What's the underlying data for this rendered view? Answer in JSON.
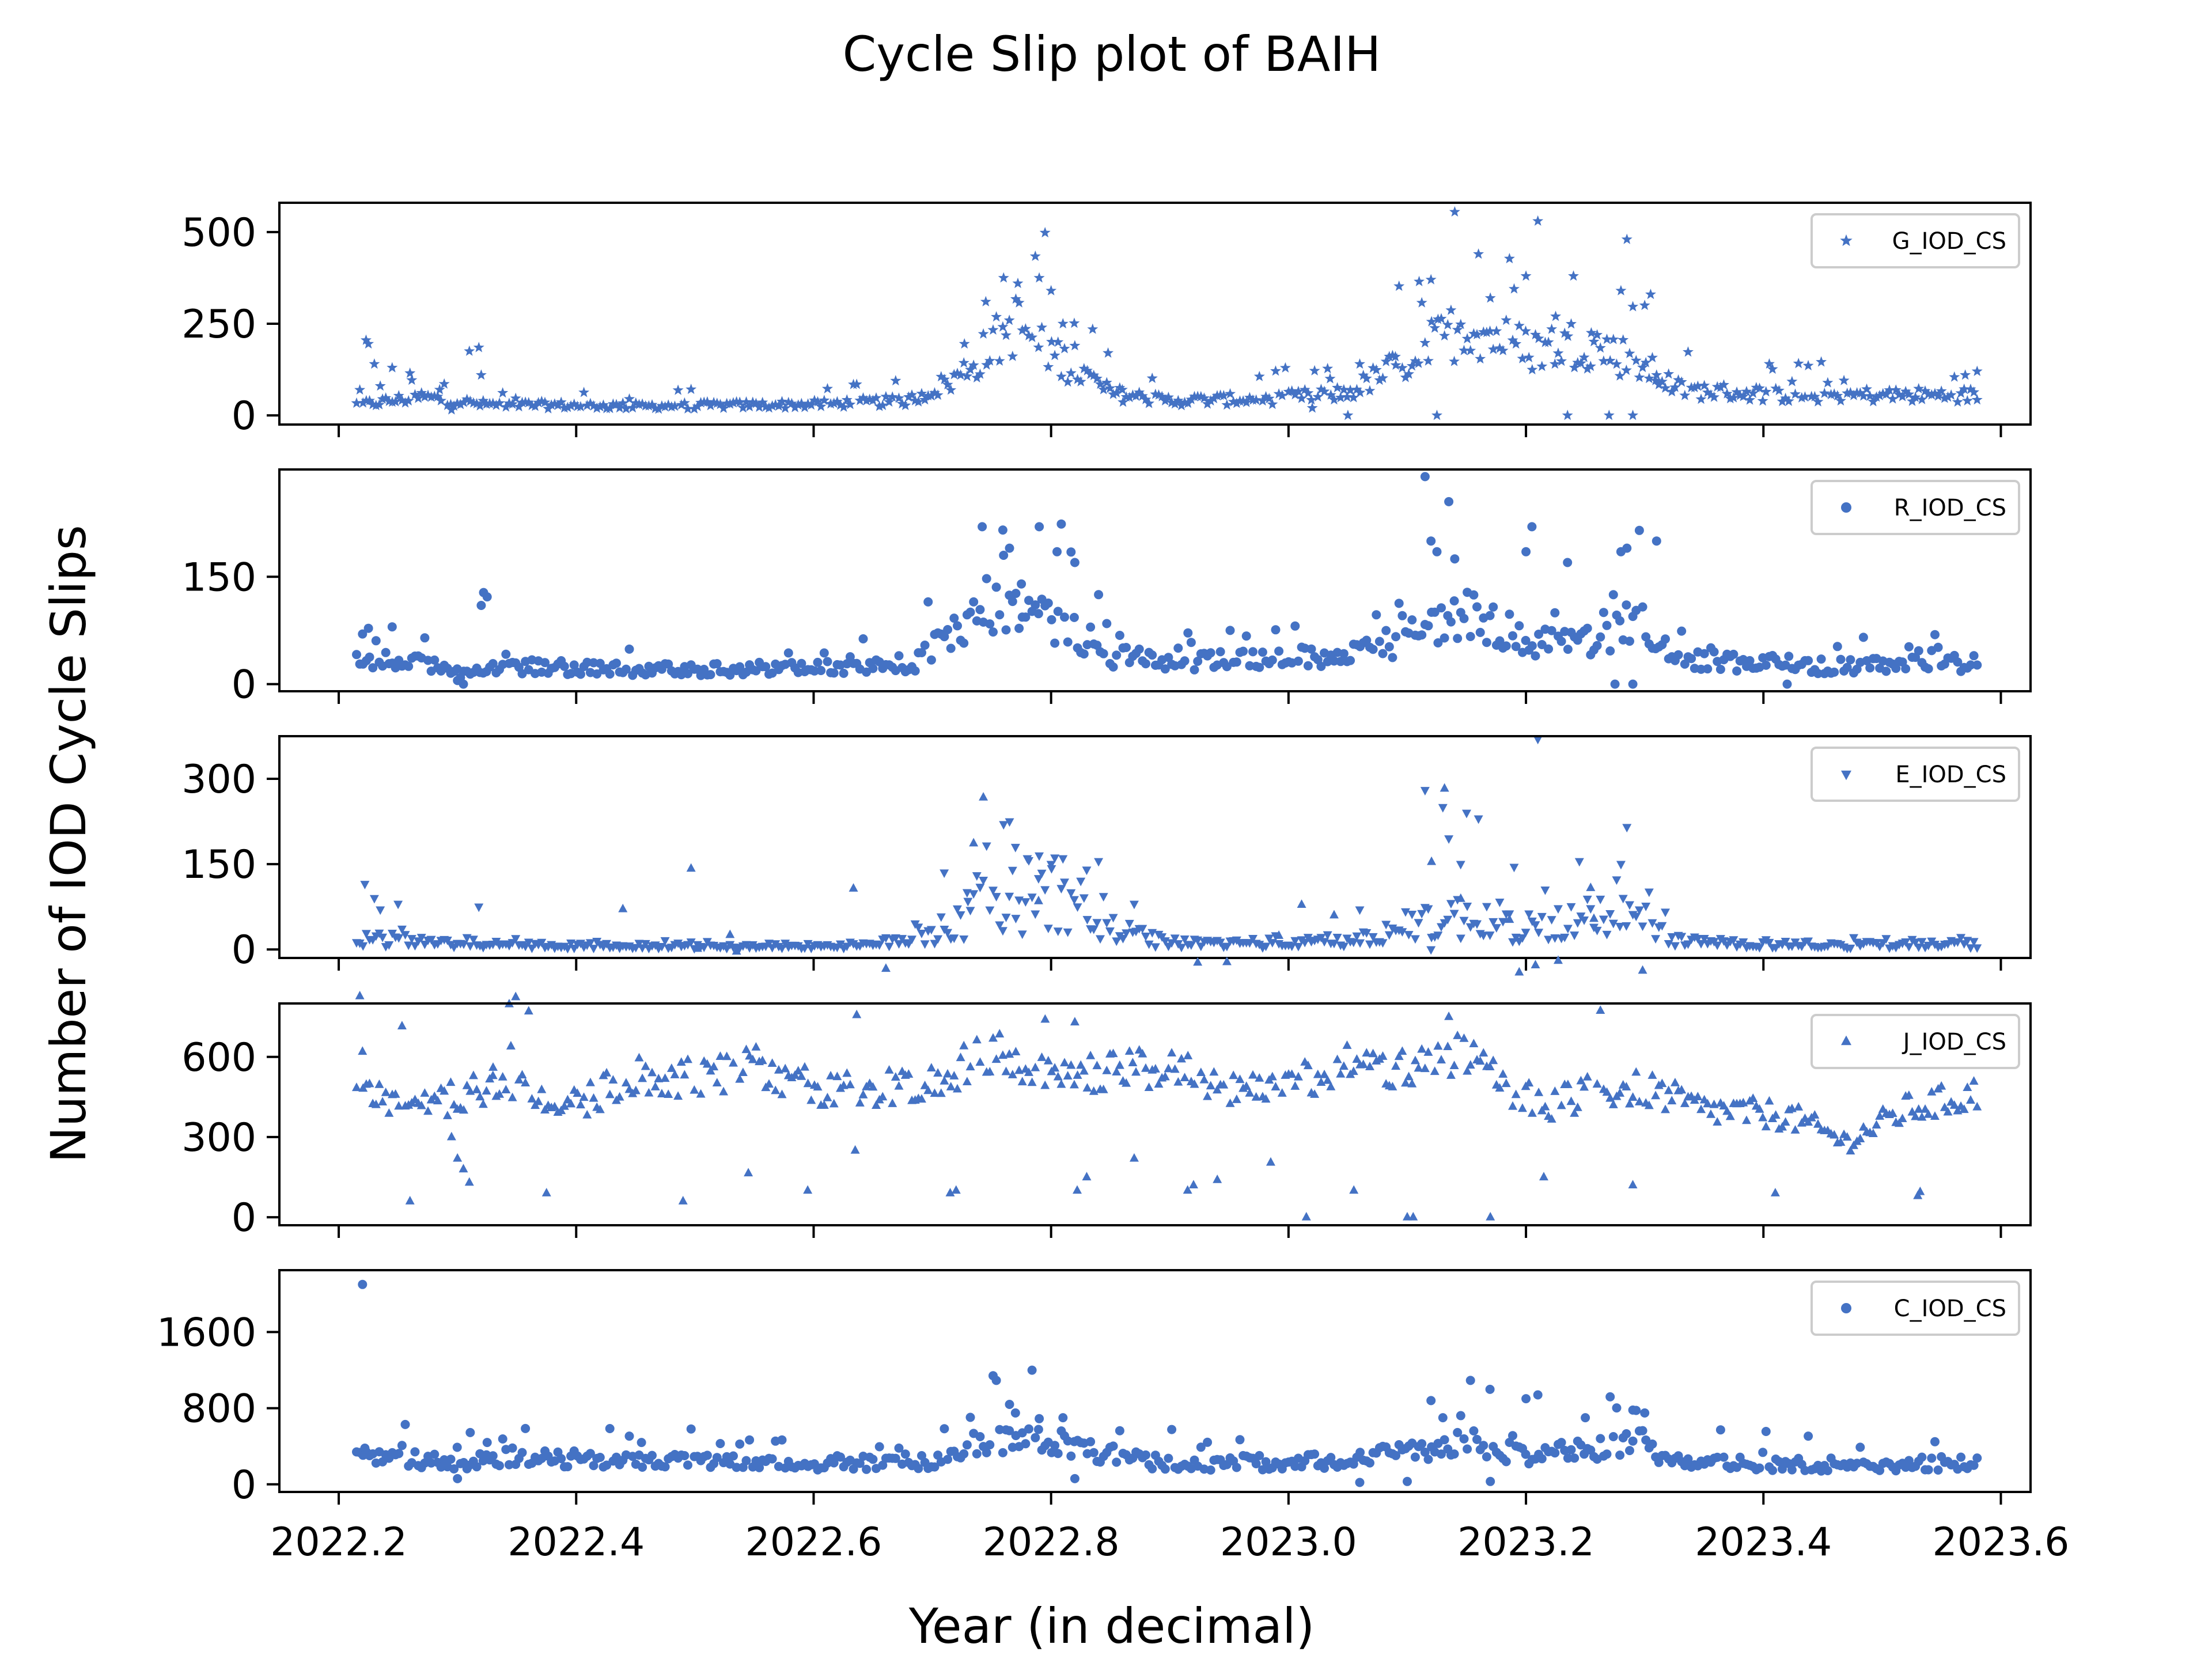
{
  "figure": {
    "title": "Cycle Slip plot of BAIH",
    "xlabel": "Year (in decimal)",
    "ylabel": "Number of IOD Cycle Slips",
    "point_color": "#4472c4"
  },
  "chart_data": {
    "type": "scatter",
    "grid": false,
    "legend_placement": "top-right",
    "x_range": [
      2022.15,
      2023.625
    ],
    "x_ticks": [
      2022.2,
      2022.4,
      2022.6,
      2022.8,
      2023.0,
      2023.2,
      2023.4,
      2023.6
    ],
    "x_tick_labels": [
      "2022.2",
      "2022.4",
      "2022.6",
      "2022.8",
      "2023.0",
      "2023.2",
      "2023.4",
      "2023.6"
    ],
    "panels": [
      {
        "id": "g",
        "series_name": "G_IOD_CS",
        "marker": "star",
        "ylim": [
          -25,
          580
        ],
        "y_ticks": [
          0,
          250,
          500
        ],
        "profile": [
          [
            2022.22,
            30
          ],
          [
            2022.27,
            50
          ],
          [
            2022.32,
            30
          ],
          [
            2022.45,
            25
          ],
          [
            2022.6,
            30
          ],
          [
            2022.68,
            40
          ],
          [
            2022.72,
            100
          ],
          [
            2022.77,
            250
          ],
          [
            2022.81,
            150
          ],
          [
            2022.85,
            60
          ],
          [
            2022.9,
            40
          ],
          [
            2022.98,
            45
          ],
          [
            2023.05,
            60
          ],
          [
            2023.1,
            150
          ],
          [
            2023.15,
            250
          ],
          [
            2023.2,
            180
          ],
          [
            2023.25,
            200
          ],
          [
            2023.29,
            150
          ],
          [
            2023.33,
            70
          ],
          [
            2023.42,
            55
          ],
          [
            2023.58,
            55
          ]
        ],
        "spread": 0.3,
        "highlights": [
          [
            2022.223,
            205
          ],
          [
            2022.225,
            195
          ],
          [
            2022.23,
            140
          ],
          [
            2022.235,
            80
          ],
          [
            2022.245,
            130
          ],
          [
            2022.26,
            115
          ],
          [
            2022.285,
            70
          ],
          [
            2022.295,
            15
          ],
          [
            2022.31,
            175
          ],
          [
            2022.318,
            185
          ],
          [
            2022.32,
            110
          ],
          [
            2022.727,
            195
          ],
          [
            2022.745,
            310
          ],
          [
            2022.76,
            375
          ],
          [
            2022.772,
            360
          ],
          [
            2022.79,
            375
          ],
          [
            2022.8,
            340
          ],
          [
            2022.81,
            250
          ],
          [
            2022.82,
            190
          ],
          [
            2022.835,
            235
          ],
          [
            2022.848,
            170
          ],
          [
            2022.86,
            70
          ],
          [
            2023.02,
            20
          ],
          [
            2023.035,
            100
          ],
          [
            2023.05,
            0
          ],
          [
            2023.06,
            140
          ],
          [
            2023.09,
            160
          ],
          [
            2023.11,
            365
          ],
          [
            2023.12,
            370
          ],
          [
            2023.125,
            0
          ],
          [
            2023.14,
            555
          ],
          [
            2023.16,
            440
          ],
          [
            2023.17,
            320
          ],
          [
            2023.19,
            345
          ],
          [
            2023.2,
            380
          ],
          [
            2023.21,
            530
          ],
          [
            2023.225,
            270
          ],
          [
            2023.235,
            0
          ],
          [
            2023.24,
            380
          ],
          [
            2023.255,
            225
          ],
          [
            2023.27,
            0
          ],
          [
            2023.28,
            340
          ],
          [
            2023.285,
            480
          ],
          [
            2023.29,
            0
          ],
          [
            2023.3,
            300
          ],
          [
            2023.305,
            330
          ],
          [
            2023.31,
            110
          ],
          [
            2023.57,
            110
          ],
          [
            2023.58,
            120
          ]
        ]
      },
      {
        "id": "r",
        "series_name": "R_IOD_CS",
        "marker": "circle",
        "ylim": [
          -10,
          300
        ],
        "y_ticks": [
          0,
          150
        ],
        "profile": [
          [
            2022.22,
            30
          ],
          [
            2022.26,
            35
          ],
          [
            2022.3,
            15
          ],
          [
            2022.35,
            25
          ],
          [
            2022.45,
            20
          ],
          [
            2022.6,
            22
          ],
          [
            2022.68,
            25
          ],
          [
            2022.72,
            70
          ],
          [
            2022.77,
            110
          ],
          [
            2022.81,
            90
          ],
          [
            2022.85,
            40
          ],
          [
            2022.9,
            30
          ],
          [
            2023.0,
            35
          ],
          [
            2023.05,
            45
          ],
          [
            2023.1,
            60
          ],
          [
            2023.14,
            100
          ],
          [
            2023.2,
            60
          ],
          [
            2023.25,
            60
          ],
          [
            2023.29,
            90
          ],
          [
            2023.33,
            35
          ],
          [
            2023.45,
            25
          ],
          [
            2023.58,
            30
          ]
        ],
        "spread": 0.35,
        "highlights": [
          [
            2022.22,
            70
          ],
          [
            2022.225,
            78
          ],
          [
            2022.245,
            80
          ],
          [
            2022.3,
            5
          ],
          [
            2022.305,
            0
          ],
          [
            2022.32,
            110
          ],
          [
            2022.322,
            128
          ],
          [
            2022.325,
            122
          ],
          [
            2022.742,
            220
          ],
          [
            2022.76,
            180
          ],
          [
            2022.765,
            190
          ],
          [
            2022.775,
            140
          ],
          [
            2022.79,
            220
          ],
          [
            2022.805,
            185
          ],
          [
            2022.82,
            170
          ],
          [
            2022.84,
            125
          ],
          [
            2023.115,
            290
          ],
          [
            2023.12,
            200
          ],
          [
            2023.125,
            185
          ],
          [
            2023.135,
            255
          ],
          [
            2023.14,
            175
          ],
          [
            2023.2,
            185
          ],
          [
            2023.205,
            220
          ],
          [
            2023.235,
            170
          ],
          [
            2023.28,
            185
          ],
          [
            2023.285,
            190
          ],
          [
            2023.275,
            0
          ],
          [
            2023.29,
            0
          ],
          [
            2023.31,
            200
          ],
          [
            2023.42,
            0
          ]
        ]
      },
      {
        "id": "e",
        "series_name": "E_IOD_CS",
        "marker": "triangle-down",
        "ylim": [
          -15,
          375
        ],
        "y_ticks": [
          0,
          150,
          300
        ],
        "profile": [
          [
            2022.22,
            20
          ],
          [
            2022.26,
            15
          ],
          [
            2022.3,
            10
          ],
          [
            2022.35,
            8
          ],
          [
            2022.5,
            6
          ],
          [
            2022.65,
            8
          ],
          [
            2022.7,
            30
          ],
          [
            2022.76,
            100
          ],
          [
            2022.81,
            80
          ],
          [
            2022.86,
            30
          ],
          [
            2022.9,
            12
          ],
          [
            2023.0,
            12
          ],
          [
            2023.05,
            15
          ],
          [
            2023.1,
            40
          ],
          [
            2023.15,
            60
          ],
          [
            2023.2,
            40
          ],
          [
            2023.27,
            60
          ],
          [
            2023.3,
            50
          ],
          [
            2023.33,
            15
          ],
          [
            2023.45,
            8
          ],
          [
            2023.58,
            10
          ]
        ],
        "spread": 0.6,
        "highlights": [
          [
            2022.222,
            115
          ],
          [
            2022.23,
            90
          ],
          [
            2022.235,
            70
          ],
          [
            2022.25,
            80
          ],
          [
            2022.318,
            75
          ],
          [
            2022.71,
            135
          ],
          [
            2022.73,
            85
          ],
          [
            2022.76,
            220
          ],
          [
            2022.765,
            225
          ],
          [
            2022.77,
            180
          ],
          [
            2022.78,
            160
          ],
          [
            2022.79,
            165
          ],
          [
            2022.8,
            150
          ],
          [
            2022.81,
            160
          ],
          [
            2022.83,
            140
          ],
          [
            2022.84,
            155
          ],
          [
            2022.87,
            80
          ],
          [
            2023.115,
            280
          ],
          [
            2023.13,
            250
          ],
          [
            2023.135,
            195
          ],
          [
            2023.145,
            150
          ],
          [
            2023.15,
            240
          ],
          [
            2023.16,
            230
          ],
          [
            2023.19,
            145
          ],
          [
            2023.21,
            370
          ],
          [
            2023.245,
            155
          ],
          [
            2023.285,
            215
          ],
          [
            2023.28,
            150
          ],
          [
            2023.12,
            0
          ],
          [
            2023.06,
            70
          ]
        ]
      },
      {
        "id": "j",
        "series_name": "J_IOD_CS",
        "marker": "triangle-up",
        "ylim": [
          -30,
          800
        ],
        "y_ticks": [
          0,
          300,
          600
        ],
        "profile": [
          [
            2022.22,
            480
          ],
          [
            2022.26,
            400
          ],
          [
            2022.3,
            450
          ],
          [
            2022.35,
            500
          ],
          [
            2022.4,
            420
          ],
          [
            2022.45,
            530
          ],
          [
            2022.5,
            520
          ],
          [
            2022.55,
            560
          ],
          [
            2022.6,
            480
          ],
          [
            2022.65,
            480
          ],
          [
            2022.7,
            500
          ],
          [
            2022.75,
            620
          ],
          [
            2022.8,
            560
          ],
          [
            2022.85,
            540
          ],
          [
            2022.9,
            560
          ],
          [
            2022.95,
            480
          ],
          [
            2023.0,
            500
          ],
          [
            2023.05,
            570
          ],
          [
            2023.1,
            550
          ],
          [
            2023.14,
            620
          ],
          [
            2023.18,
            500
          ],
          [
            2023.22,
            420
          ],
          [
            2023.26,
            470
          ],
          [
            2023.3,
            480
          ],
          [
            2023.35,
            400
          ],
          [
            2023.42,
            380
          ],
          [
            2023.47,
            280
          ],
          [
            2023.52,
            400
          ],
          [
            2023.58,
            460
          ]
        ],
        "spread": 0.12,
        "highlights": [
          [
            2022.22,
            620
          ],
          [
            2022.26,
            60
          ],
          [
            2022.295,
            300
          ],
          [
            2022.3,
            220
          ],
          [
            2022.305,
            180
          ],
          [
            2022.31,
            130
          ],
          [
            2022.33,
            560
          ],
          [
            2022.345,
            640
          ],
          [
            2022.375,
            90
          ],
          [
            2022.49,
            60
          ],
          [
            2022.545,
            165
          ],
          [
            2022.595,
            100
          ],
          [
            2022.635,
            250
          ],
          [
            2022.715,
            90
          ],
          [
            2022.72,
            100
          ],
          [
            2022.795,
            740
          ],
          [
            2022.82,
            730
          ],
          [
            2022.822,
            100
          ],
          [
            2022.83,
            150
          ],
          [
            2022.87,
            220
          ],
          [
            2022.915,
            100
          ],
          [
            2022.92,
            120
          ],
          [
            2022.94,
            140
          ],
          [
            2022.985,
            205
          ],
          [
            2023.015,
            0
          ],
          [
            2023.055,
            100
          ],
          [
            2023.1,
            0
          ],
          [
            2023.105,
            0
          ],
          [
            2023.135,
            750
          ],
          [
            2023.17,
            0
          ],
          [
            2023.215,
            150
          ],
          [
            2023.29,
            120
          ],
          [
            2023.41,
            90
          ],
          [
            2023.53,
            80
          ],
          [
            2023.532,
            95
          ]
        ]
      },
      {
        "id": "c",
        "series_name": "C_IOD_CS",
        "marker": "circle",
        "ylim": [
          -80,
          2250
        ],
        "y_ticks": [
          0,
          800,
          1600
        ],
        "profile": [
          [
            2022.22,
            280
          ],
          [
            2022.28,
            260
          ],
          [
            2022.3,
            180
          ],
          [
            2022.32,
            300
          ],
          [
            2022.45,
            240
          ],
          [
            2022.6,
            220
          ],
          [
            2022.7,
            250
          ],
          [
            2022.74,
            450
          ],
          [
            2022.78,
            500
          ],
          [
            2022.82,
            400
          ],
          [
            2022.86,
            280
          ],
          [
            2022.9,
            220
          ],
          [
            2023.0,
            230
          ],
          [
            2023.06,
            260
          ],
          [
            2023.1,
            350
          ],
          [
            2023.15,
            450
          ],
          [
            2023.2,
            300
          ],
          [
            2023.25,
            350
          ],
          [
            2023.29,
            500
          ],
          [
            2023.33,
            220
          ],
          [
            2023.45,
            210
          ],
          [
            2023.58,
            220
          ]
        ],
        "spread": 0.28,
        "highlights": [
          [
            2022.22,
            2100
          ],
          [
            2022.222,
            380
          ],
          [
            2022.3,
            60
          ],
          [
            2022.31,
            200
          ],
          [
            2022.325,
            440
          ],
          [
            2022.455,
            440
          ],
          [
            2022.765,
            840
          ],
          [
            2022.77,
            750
          ],
          [
            2022.79,
            690
          ],
          [
            2022.81,
            700
          ],
          [
            2022.82,
            60
          ],
          [
            2023.12,
            880
          ],
          [
            2023.13,
            700
          ],
          [
            2023.2,
            900
          ],
          [
            2023.21,
            940
          ],
          [
            2023.25,
            700
          ],
          [
            2023.29,
            780
          ],
          [
            2023.3,
            750
          ],
          [
            2023.1,
            30
          ],
          [
            2023.17,
            30
          ],
          [
            2023.06,
            20
          ]
        ]
      }
    ]
  }
}
